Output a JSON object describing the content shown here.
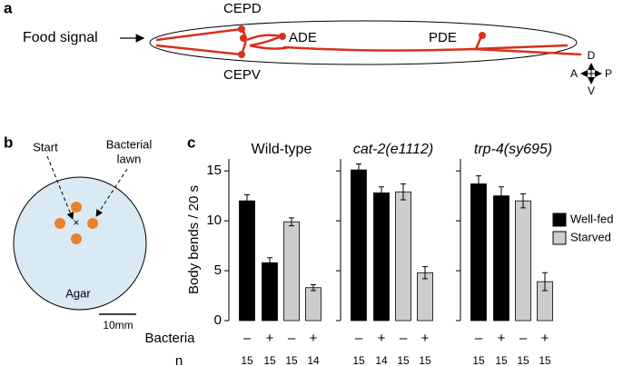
{
  "panel_a": {
    "label": "a",
    "food_signal": "Food signal",
    "neurons": [
      "CEPD",
      "CEPV",
      "ADE",
      "PDE"
    ],
    "compass": [
      "D",
      "V",
      "A",
      "P"
    ]
  },
  "panel_b": {
    "label": "b",
    "start": "Start",
    "lawn": [
      "Bacterial",
      "lawn"
    ],
    "agar": "Agar",
    "scale": "10mm"
  },
  "panel_c": {
    "label": "c",
    "row_labels": [
      "Bacteria",
      "n"
    ]
  },
  "chart_data": [
    {
      "type": "bar",
      "title": "Wild-type",
      "y_label": "Body bends / 20 s",
      "categories": [
        "–",
        "+",
        "–",
        "+"
      ],
      "n": [
        15,
        15,
        15,
        14
      ],
      "ylim": [
        0,
        16.2
      ],
      "yticks": [
        0,
        5,
        10,
        15
      ],
      "series": [
        {
          "name": "Well-fed",
          "color": "#000000",
          "values": [
            12.0,
            5.8,
            null,
            null
          ],
          "errors": [
            0.6,
            0.5,
            null,
            null
          ]
        },
        {
          "name": "Starved",
          "color": "#cccccc",
          "values": [
            null,
            null,
            9.9,
            3.3
          ],
          "errors": [
            null,
            null,
            0.4,
            0.3
          ]
        }
      ]
    },
    {
      "type": "bar",
      "title": "cat-2(e1112)",
      "categories": [
        "–",
        "+",
        "–",
        "+"
      ],
      "n": [
        15,
        14,
        15,
        15
      ],
      "ylim": [
        0,
        16.2
      ],
      "yticks": [
        0,
        5,
        10,
        15
      ],
      "series": [
        {
          "color": "#000000",
          "values": [
            15.1,
            12.8,
            null,
            null
          ],
          "errors": [
            0.6,
            0.6,
            null,
            null
          ]
        },
        {
          "color": "#cccccc",
          "values": [
            null,
            null,
            12.9,
            4.8
          ],
          "errors": [
            null,
            null,
            0.8,
            0.6
          ]
        }
      ]
    },
    {
      "type": "bar",
      "title": "trp-4(sy695)",
      "categories": [
        "–",
        "+",
        "–",
        "+"
      ],
      "n": [
        15,
        15,
        15,
        15
      ],
      "ylim": [
        0,
        16.2
      ],
      "yticks": [
        0,
        5,
        10,
        15
      ],
      "series": [
        {
          "color": "#000000",
          "values": [
            13.7,
            12.5,
            null,
            null
          ],
          "errors": [
            0.8,
            0.9,
            null,
            null
          ]
        },
        {
          "color": "#cccccc",
          "values": [
            null,
            null,
            12.0,
            3.9
          ],
          "errors": [
            null,
            null,
            0.7,
            0.9
          ]
        }
      ]
    }
  ]
}
